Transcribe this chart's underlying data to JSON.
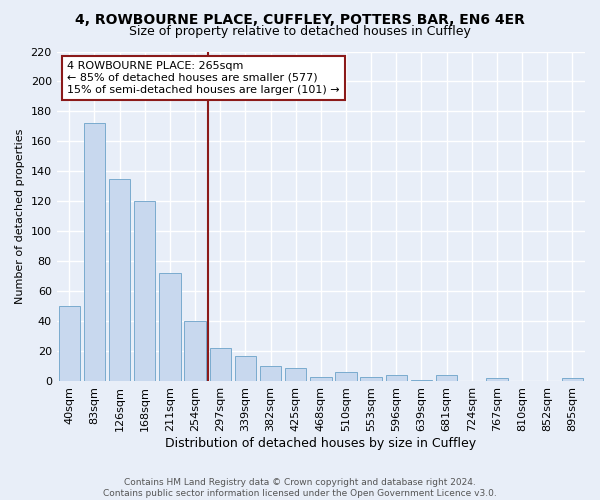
{
  "title_line1": "4, ROWBOURNE PLACE, CUFFLEY, POTTERS BAR, EN6 4ER",
  "title_line2": "Size of property relative to detached houses in Cuffley",
  "xlabel": "Distribution of detached houses by size in Cuffley",
  "ylabel": "Number of detached properties",
  "bar_labels": [
    "40sqm",
    "83sqm",
    "126sqm",
    "168sqm",
    "211sqm",
    "254sqm",
    "297sqm",
    "339sqm",
    "382sqm",
    "425sqm",
    "468sqm",
    "510sqm",
    "553sqm",
    "596sqm",
    "639sqm",
    "681sqm",
    "724sqm",
    "767sqm",
    "810sqm",
    "852sqm",
    "895sqm"
  ],
  "bar_values": [
    50,
    172,
    135,
    120,
    72,
    40,
    22,
    17,
    10,
    9,
    3,
    6,
    3,
    4,
    1,
    4,
    0,
    2,
    0,
    0,
    2
  ],
  "bar_color": "#c8d8ee",
  "bar_edge_color": "#7aabce",
  "vline_x": 5.5,
  "vline_color": "#8b1a1a",
  "annotation_title": "4 ROWBOURNE PLACE: 265sqm",
  "annotation_line1": "← 85% of detached houses are smaller (577)",
  "annotation_line2": "15% of semi-detached houses are larger (101) →",
  "ylim": [
    0,
    220
  ],
  "yticks": [
    0,
    20,
    40,
    60,
    80,
    100,
    120,
    140,
    160,
    180,
    200,
    220
  ],
  "footer_line1": "Contains HM Land Registry data © Crown copyright and database right 2024.",
  "footer_line2": "Contains public sector information licensed under the Open Government Licence v3.0.",
  "background_color": "#e8eef8",
  "grid_color": "#ffffff",
  "title_fontsize": 10,
  "subtitle_fontsize": 9,
  "xlabel_fontsize": 9,
  "ylabel_fontsize": 8,
  "tick_fontsize": 8,
  "annot_fontsize": 8,
  "footer_fontsize": 6.5
}
